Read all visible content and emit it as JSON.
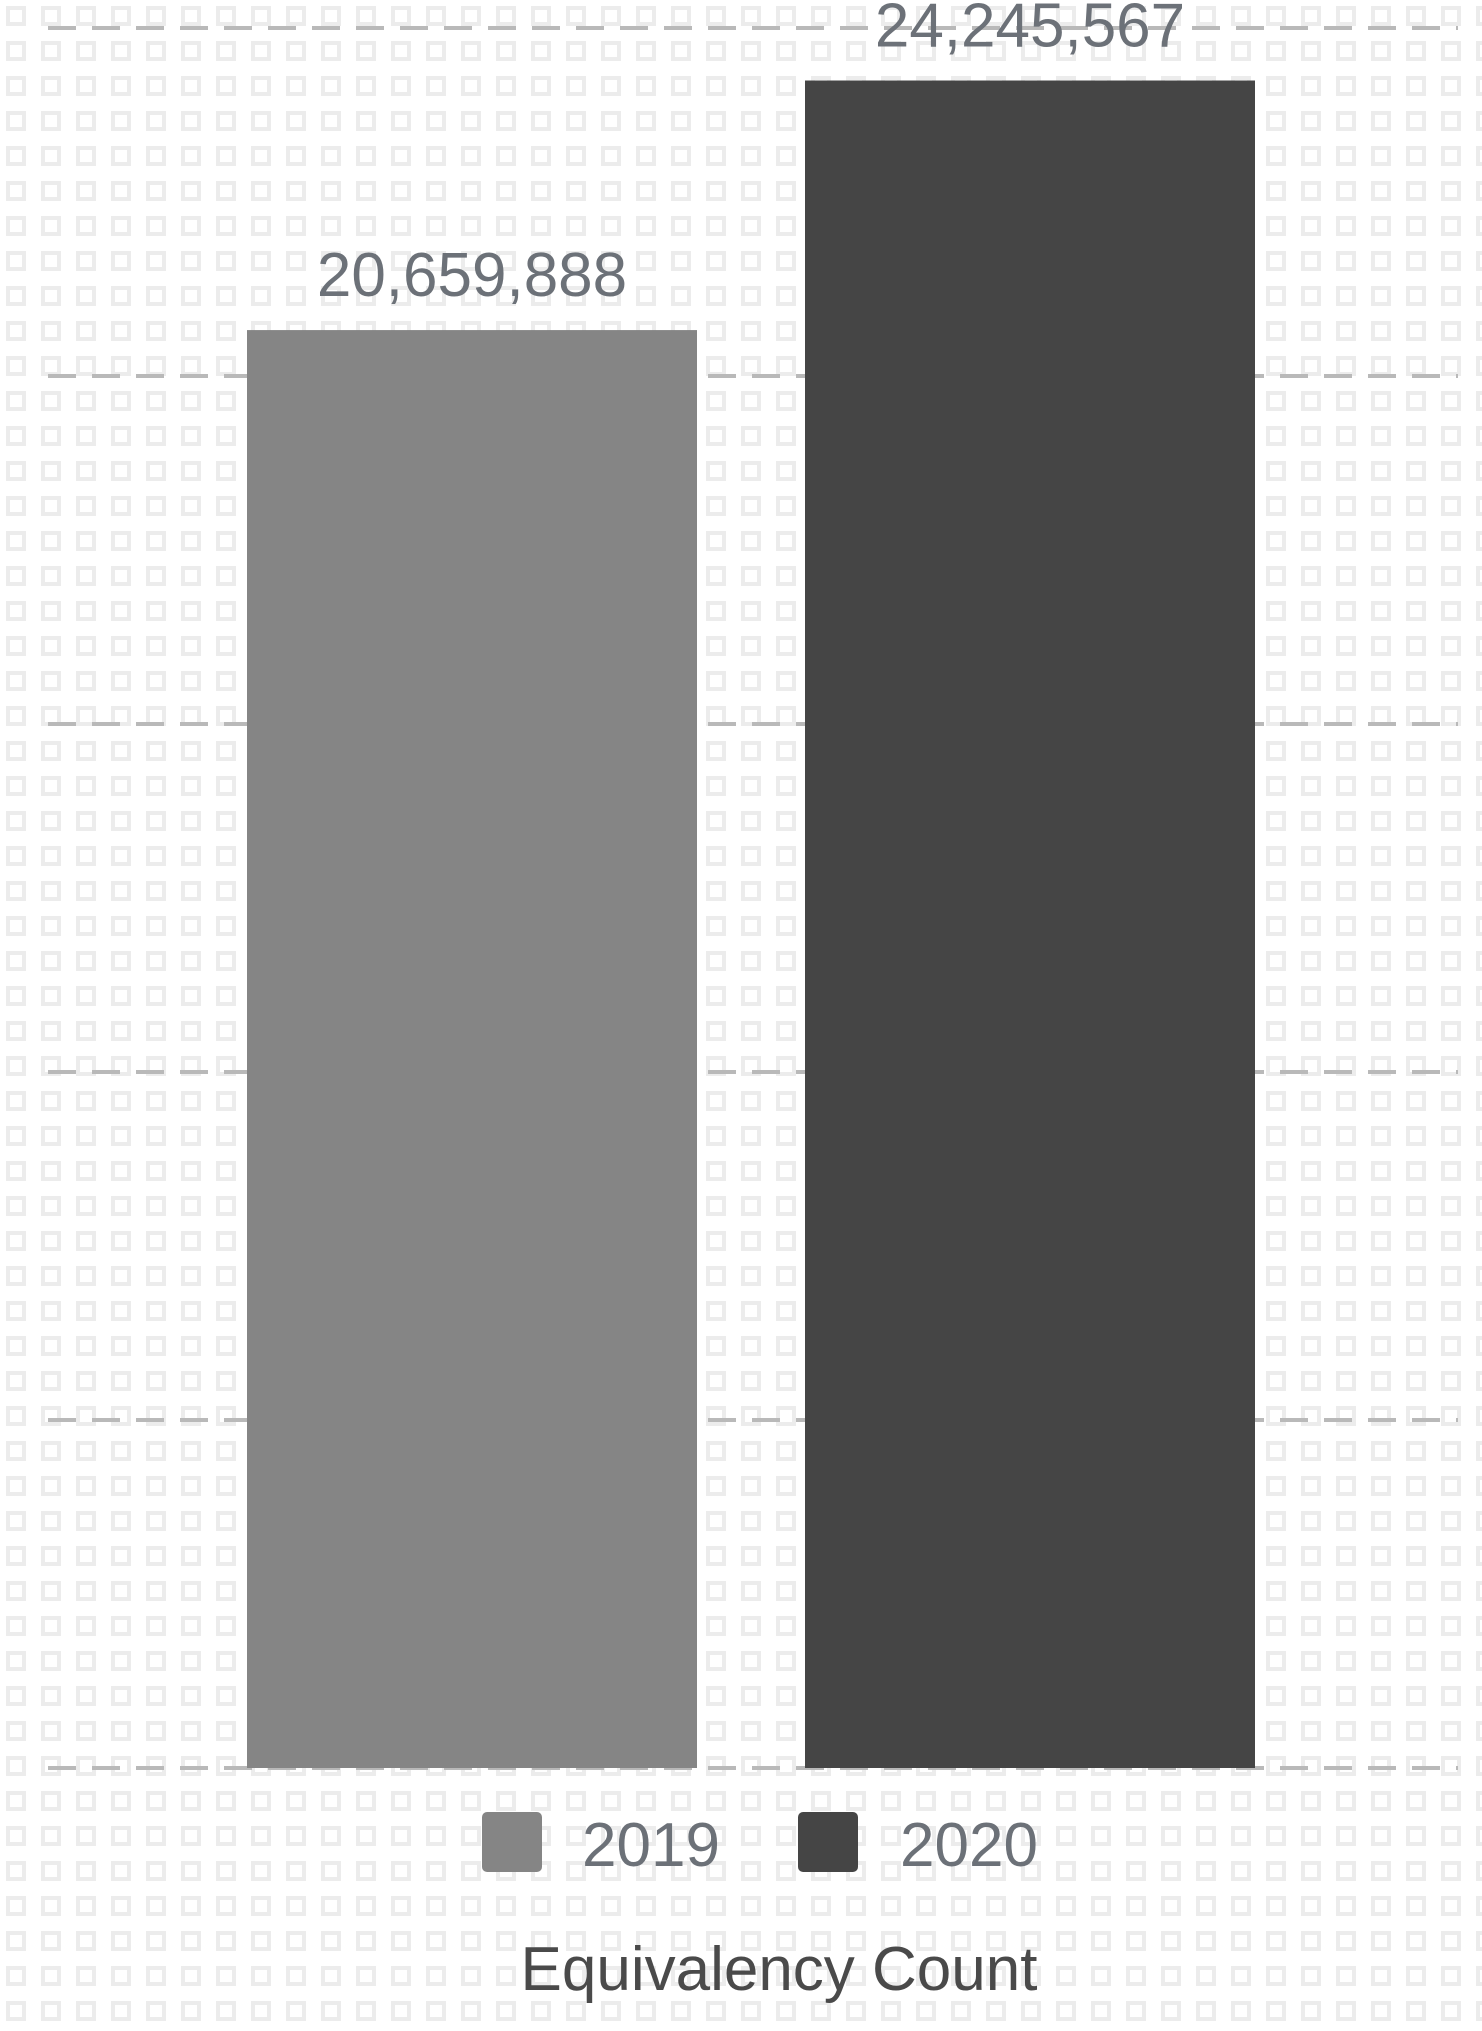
{
  "chart_data": {
    "type": "bar",
    "categories": [
      "2019",
      "2020"
    ],
    "series": [
      {
        "name": "2019",
        "values": [
          20659888,
          null
        ],
        "color": "#858585"
      },
      {
        "name": "2020",
        "values": [
          null,
          24245567
        ],
        "color": "#454545"
      }
    ],
    "values": [
      20659888,
      24245567
    ],
    "data_labels": [
      "20,659,888",
      "24,245,567"
    ],
    "title": "",
    "xlabel": "Equivalency Count",
    "ylabel": "",
    "ylim": [
      0,
      25000000
    ],
    "grid": true,
    "grid_style": "dashed",
    "legend": {
      "placement": "bottom",
      "items": [
        {
          "label": "2019",
          "color": "#858585"
        },
        {
          "label": "2020",
          "color": "#454545"
        }
      ]
    },
    "colors": {
      "grid": "#b9b9b9",
      "background": "#ffffff",
      "pattern": "#ececec"
    }
  }
}
